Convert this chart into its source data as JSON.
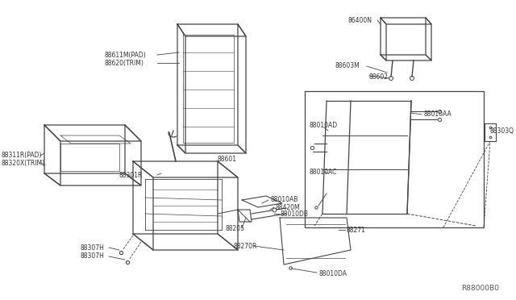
{
  "bg_color": "#ffffff",
  "line_color": "#444444",
  "text_color": "#333333",
  "ref_code": "R88000B0",
  "figsize": [
    6.4,
    3.72
  ],
  "dpi": 100,
  "labels": {
    "88611M_PAD": "88611M(PAD)",
    "88620_TRIM": "88620(TRIM)",
    "88311R_PAD": "88311R(PAD)",
    "88320X_TRIM": "88320X(TRIM)",
    "88601": "88601",
    "86400N": "86400N",
    "88603M": "88603M",
    "88602": "88602",
    "88010AD": "88010AD",
    "88010AA": "88010AA",
    "88303Q": "88303Q",
    "88010AC": "88010AC",
    "88301R": "88301R",
    "88307H_1": "88307H",
    "88307H_2": "88307H",
    "88205": "88205",
    "88010AB": "88010AB",
    "88420M": "88420M",
    "88010DB": "88010DB",
    "88270R": "88270R",
    "88271": "88271",
    "88010DA": "88010DA"
  }
}
